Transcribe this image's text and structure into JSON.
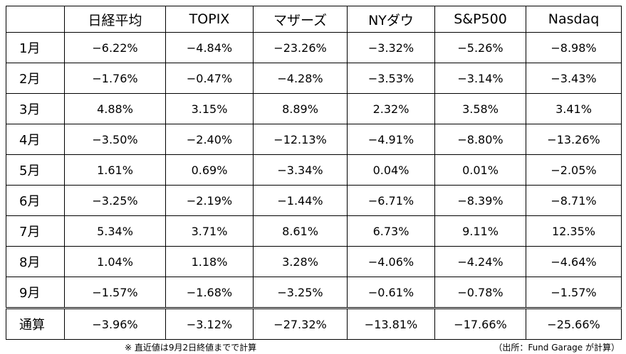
{
  "table": {
    "header": [
      "日経平均",
      "TOPIX",
      "マザーズ",
      "NYダウ",
      "S&P500",
      "Nasdaq"
    ],
    "rows": [
      [
        "1月",
        "−6.22%",
        "−4.84%",
        "−23.26%",
        "−3.32%",
        "−5.26%",
        "−8.98%"
      ],
      [
        "2月",
        "−1.76%",
        "−0.47%",
        "−4.28%",
        "−3.53%",
        "−3.14%",
        "−3.43%"
      ],
      [
        "3月",
        "4.88%",
        "3.15%",
        "8.89%",
        "2.32%",
        "3.58%",
        "3.41%"
      ],
      [
        "4月",
        "−3.50%",
        "−2.40%",
        "−12.13%",
        "−4.91%",
        "−8.80%",
        "−13.26%"
      ],
      [
        "5月",
        "1.61%",
        "0.69%",
        "−3.34%",
        "0.04%",
        "0.01%",
        "−2.05%"
      ],
      [
        "6月",
        "−3.25%",
        "−2.19%",
        "−1.44%",
        "−6.71%",
        "−8.39%",
        "−8.71%"
      ],
      [
        "7月",
        "5.34%",
        "3.71%",
        "8.61%",
        "6.73%",
        "9.11%",
        "12.35%"
      ],
      [
        "8月",
        "1.04%",
        "1.18%",
        "3.28%",
        "−4.06%",
        "−4.24%",
        "−4.64%"
      ],
      [
        "9月",
        "−1.57%",
        "−1.68%",
        "−3.25%",
        "−0.61%",
        "−0.78%",
        "−1.57%"
      ]
    ],
    "total": [
      "通算",
      "−3.96%",
      "−3.12%",
      "−27.32%",
      "−13.81%",
      "−17.66%",
      "−25.66%"
    ]
  },
  "notes": {
    "left": "※ 直近値は9月2日終値までで計算",
    "right": "（出所：Fund Garage が計算）"
  }
}
